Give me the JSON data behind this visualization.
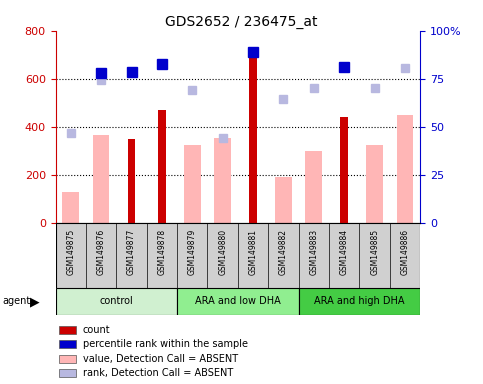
{
  "title": "GDS2652 / 236475_at",
  "samples": [
    "GSM149875",
    "GSM149876",
    "GSM149877",
    "GSM149878",
    "GSM149879",
    "GSM149880",
    "GSM149881",
    "GSM149882",
    "GSM149883",
    "GSM149884",
    "GSM149885",
    "GSM149886"
  ],
  "count_values": [
    null,
    null,
    350,
    470,
    null,
    null,
    700,
    null,
    null,
    440,
    null,
    null
  ],
  "absent_value_bars": [
    130,
    365,
    null,
    null,
    325,
    355,
    null,
    190,
    300,
    null,
    325,
    450
  ],
  "absent_rank_dots": [
    375,
    595,
    null,
    null,
    555,
    355,
    null,
    515,
    560,
    null,
    560,
    645
  ],
  "percentile_dots": [
    null,
    625,
    630,
    660,
    null,
    null,
    710,
    null,
    null,
    650,
    null,
    null
  ],
  "ylim": [
    0,
    800
  ],
  "y2lim": [
    0,
    100
  ],
  "yticks": [
    0,
    200,
    400,
    600,
    800
  ],
  "y2ticks": [
    0,
    25,
    50,
    75,
    100
  ],
  "y2ticklabels": [
    "0",
    "25",
    "50",
    "75",
    "100%"
  ],
  "gridlines": [
    200,
    400,
    600
  ],
  "color_count": "#cc0000",
  "color_absent_bar": "#ffb6b6",
  "color_absent_rank": "#b8b8e0",
  "color_percentile": "#0000cc",
  "group_names": [
    "control",
    "ARA and low DHA",
    "ARA and high DHA"
  ],
  "group_ranges": [
    [
      0,
      4
    ],
    [
      4,
      8
    ],
    [
      8,
      12
    ]
  ],
  "group_colors": [
    "#d0f0d0",
    "#90ee90",
    "#44cc44"
  ],
  "sample_bg_color": "#d0d0d0",
  "legend_items": [
    {
      "label": "count",
      "color": "#cc0000"
    },
    {
      "label": "percentile rank within the sample",
      "color": "#0000cc"
    },
    {
      "label": "value, Detection Call = ABSENT",
      "color": "#ffb6b6"
    },
    {
      "label": "rank, Detection Call = ABSENT",
      "color": "#b8b8e0"
    }
  ]
}
